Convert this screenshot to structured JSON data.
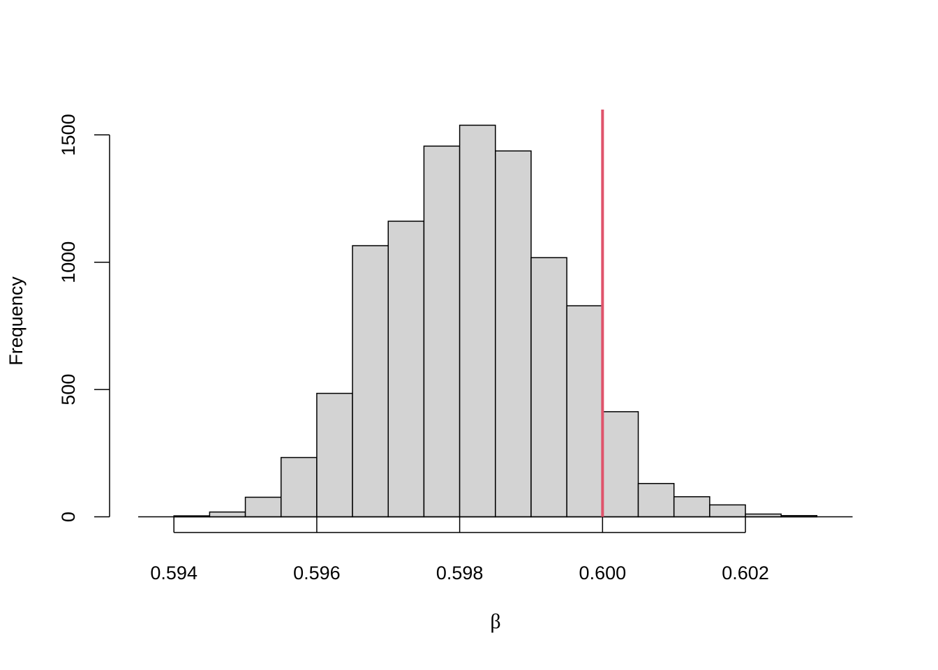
{
  "chart_data": {
    "type": "histogram",
    "x_label": "β",
    "y_label": "Frequency",
    "bins": [
      0.594,
      0.5945,
      0.595,
      0.5955,
      0.596,
      0.5965,
      0.597,
      0.5975,
      0.598,
      0.5985,
      0.599,
      0.5995,
      0.6,
      0.6005,
      0.601,
      0.6015,
      0.602,
      0.6025,
      0.603
    ],
    "counts": [
      4,
      19,
      77,
      233,
      485,
      1065,
      1161,
      1456,
      1538,
      1437,
      1018,
      829,
      413,
      131,
      79,
      47,
      11,
      5
    ],
    "color": "#d3d3d3",
    "xlim": [
      0.5935,
      0.6035
    ],
    "xticks": [
      0.594,
      0.596,
      0.598,
      {
        "value": 0.6,
        "label": "0.600"
      },
      0.602
    ],
    "ylim": [
      -61.5,
      1599.5
    ],
    "yticks": [
      0,
      500,
      1000,
      1500
    ],
    "vline": {
      "value": 0.6,
      "color": "#df536b"
    },
    "hline": 0
  }
}
